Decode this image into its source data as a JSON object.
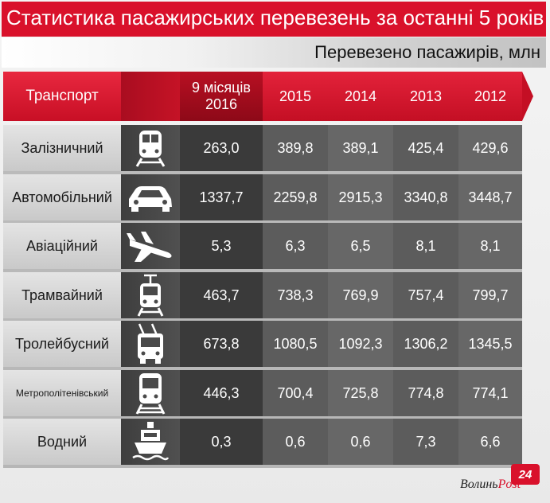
{
  "title": "Статистика пасажирських перевезень за останні 5 років",
  "subtitle": "Перевезено пасажирів, млн",
  "colors": {
    "accent_red": "#d9112b",
    "dark_cell": "#3a3a3a",
    "grey_cell": "#5c5c5c"
  },
  "chart_data": {
    "type": "table",
    "title": "Статистика пасажирських перевезень за останні 5 років",
    "unit_label": "Перевезено пасажирів, млн",
    "header_label": "Транспорт",
    "columns": [
      "9 місяців 2016",
      "2015",
      "2014",
      "2013",
      "2012"
    ],
    "rows": [
      {
        "name": "Залізничний",
        "icon": "train-icon",
        "values": [
          "263,0",
          "389,8",
          "389,1",
          "425,4",
          "429,6"
        ]
      },
      {
        "name": "Автомобільний",
        "icon": "car-icon",
        "values": [
          "1337,7",
          "2259,8",
          "2915,3",
          "3340,8",
          "3448,7"
        ]
      },
      {
        "name": "Авіаційний",
        "icon": "airplane-icon",
        "values": [
          "5,3",
          "6,3",
          "6,5",
          "8,1",
          "8,1"
        ]
      },
      {
        "name": "Трамвайний",
        "icon": "tram-icon",
        "values": [
          "463,7",
          "738,3",
          "769,9",
          "757,4",
          "799,7"
        ]
      },
      {
        "name": "Тролейбусний",
        "icon": "trolleybus-icon",
        "values": [
          "673,8",
          "1080,5",
          "1092,3",
          "1306,2",
          "1345,5"
        ]
      },
      {
        "name": "Метрополітенівський",
        "icon": "metro-icon",
        "values": [
          "446,3",
          "700,4",
          "725,8",
          "774,8",
          "774,1"
        ]
      },
      {
        "name": "Водний",
        "icon": "ship-icon",
        "values": [
          "0,3",
          "0,6",
          "0,6",
          "7,3",
          "6,6"
        ]
      }
    ]
  },
  "logo": {
    "badge": "24",
    "brand_main": "Волинь",
    "brand_post": "Post"
  }
}
